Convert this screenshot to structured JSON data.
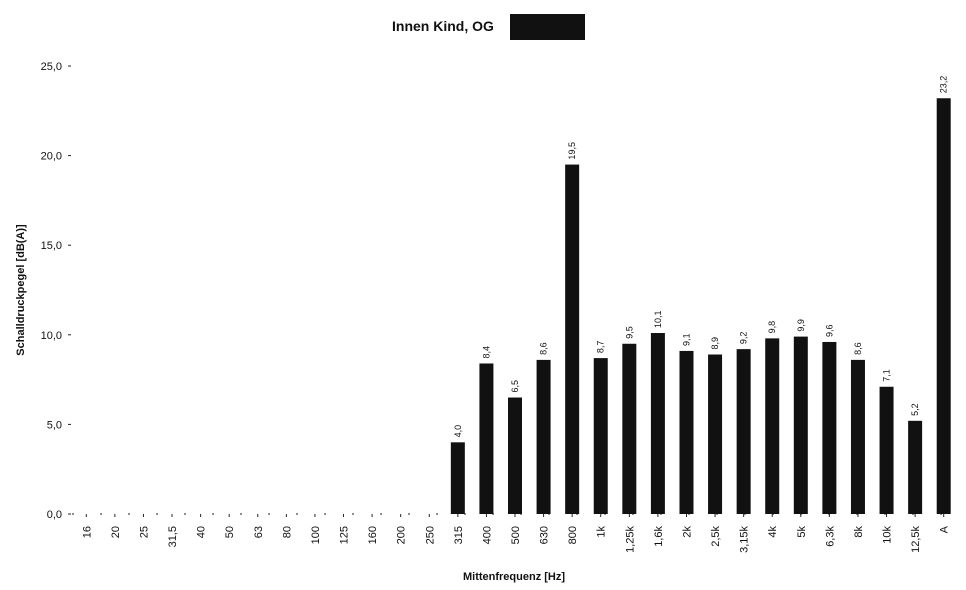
{
  "chart_data": {
    "type": "bar",
    "title": "Innen Kind, OG",
    "xlabel": "Mittenfrequenz [Hz]",
    "ylabel": "Schalldruckpegel [dB(A)]",
    "ylim": [
      0,
      25
    ],
    "yticks": [
      "0,0",
      "5,0",
      "10,0",
      "15,0",
      "20,0",
      "25,0"
    ],
    "grid": false,
    "categories": [
      "16",
      "20",
      "25",
      "31,5",
      "40",
      "50",
      "63",
      "80",
      "100",
      "125",
      "160",
      "200",
      "250",
      "315",
      "400",
      "500",
      "630",
      "800",
      "1k",
      "1,25k",
      "1,6k",
      "2k",
      "2,5k",
      "3,15k",
      "4k",
      "5k",
      "6,3k",
      "8k",
      "10k",
      "12,5k",
      "A"
    ],
    "values": [
      null,
      null,
      null,
      null,
      null,
      null,
      null,
      null,
      null,
      null,
      null,
      null,
      null,
      4.0,
      8.4,
      6.5,
      8.6,
      19.5,
      8.7,
      9.5,
      10.1,
      9.1,
      8.9,
      9.2,
      9.8,
      9.9,
      9.6,
      8.6,
      7.1,
      5.2,
      23.2
    ],
    "value_labels": [
      "",
      "",
      "",
      "",
      "",
      "",
      "",
      "",
      "",
      "",
      "",
      "",
      "",
      "4,0",
      "8,4",
      "6,5",
      "8,6",
      "19,5",
      "8,7",
      "9,5",
      "10,1",
      "9,1",
      "8,9",
      "9,2",
      "9,8",
      "9,9",
      "9,6",
      "8,6",
      "7,1",
      "5,2",
      "23,2"
    ],
    "bar_color": "#111111",
    "redaction_color": "#111111"
  }
}
